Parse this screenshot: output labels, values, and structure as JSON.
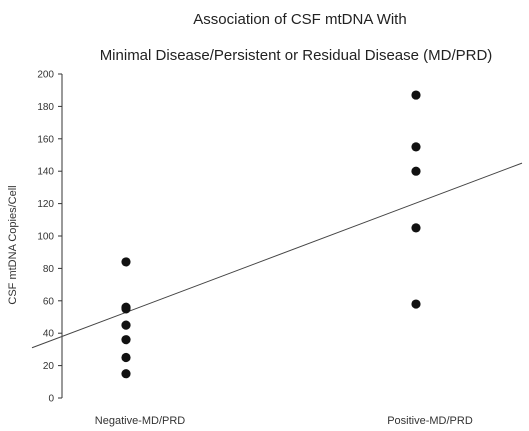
{
  "chart_data": {
    "type": "scatter",
    "title": "Association of CSF mtDNA With",
    "subtitle": "Minimal Disease/Persistent or Residual Disease (MD/PRD)",
    "xlabel": "",
    "ylabel": "CSF mtDNA Copies/Cell",
    "categories": [
      "Negative-MD/PRD",
      "Positive-MD/PRD"
    ],
    "ylim": [
      0,
      200
    ],
    "yticks": [
      0,
      20,
      40,
      60,
      80,
      100,
      120,
      140,
      160,
      180,
      200
    ],
    "grid": false,
    "series": [
      {
        "points": [
          {
            "category": "Negative-MD/PRD",
            "value": 84
          },
          {
            "category": "Negative-MD/PRD",
            "value": 56
          },
          {
            "category": "Negative-MD/PRD",
            "value": 55
          },
          {
            "category": "Negative-MD/PRD",
            "value": 45
          },
          {
            "category": "Negative-MD/PRD",
            "value": 36
          },
          {
            "category": "Negative-MD/PRD",
            "value": 25
          },
          {
            "category": "Negative-MD/PRD",
            "value": 15
          },
          {
            "category": "Positive-MD/PRD",
            "value": 187
          },
          {
            "category": "Positive-MD/PRD",
            "value": 155
          },
          {
            "category": "Positive-MD/PRD",
            "value": 140
          },
          {
            "category": "Positive-MD/PRD",
            "value": 105
          },
          {
            "category": "Positive-MD/PRD",
            "value": 58
          }
        ]
      }
    ],
    "trendline": {
      "type": "linear",
      "start_value": 31,
      "end_value": 145
    },
    "colors": {
      "points": "#111111",
      "line": "#444444",
      "axis": "#333333"
    }
  }
}
